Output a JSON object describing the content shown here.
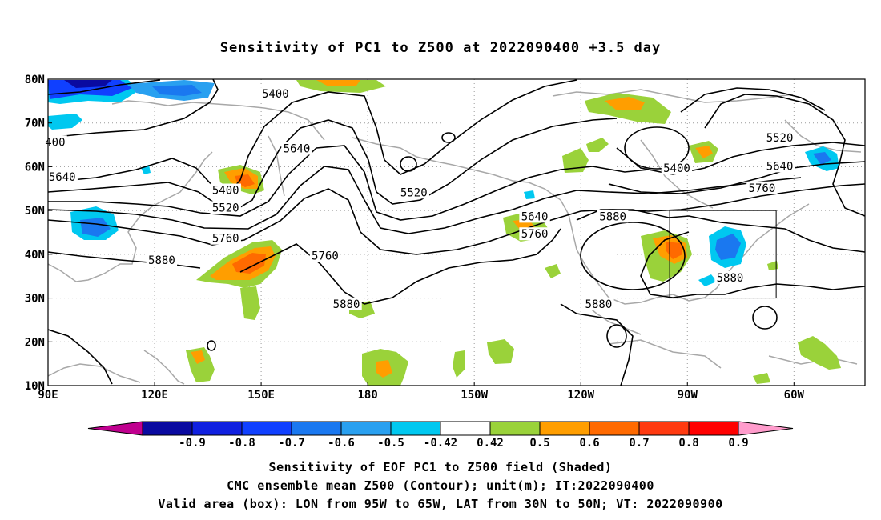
{
  "title": "Sensitivity of PC1 to Z500 at 2022090400 +3.5 day",
  "captions": {
    "line1": "Sensitivity of EOF PC1 to Z500 field (Shaded)",
    "line2": "CMC ensemble mean Z500 (Contour); unit(m); IT:2022090400",
    "line3": "Valid area (box): LON from 95W to 65W, LAT from 30N to 50N; VT: 2022090900"
  },
  "map": {
    "lon_range": [
      90,
      320
    ],
    "lat_range": [
      10,
      80
    ],
    "lon_ticks": [
      {
        "lon": 90,
        "label": "90E"
      },
      {
        "lon": 120,
        "label": "120E"
      },
      {
        "lon": 150,
        "label": "150E"
      },
      {
        "lon": 180,
        "label": "180"
      },
      {
        "lon": 210,
        "label": "150W"
      },
      {
        "lon": 240,
        "label": "120W"
      },
      {
        "lon": 270,
        "label": "90W"
      },
      {
        "lon": 300,
        "label": "60W"
      }
    ],
    "lat_ticks": [
      {
        "lat": 80,
        "label": "80N"
      },
      {
        "lat": 70,
        "label": "70N"
      },
      {
        "lat": 60,
        "label": "60N"
      },
      {
        "lat": 50,
        "label": "50N"
      },
      {
        "lat": 40,
        "label": "40N"
      },
      {
        "lat": 30,
        "label": "30N"
      },
      {
        "lat": 20,
        "label": "20N"
      },
      {
        "lat": 10,
        "label": "10N"
      }
    ],
    "valid_box": {
      "lon_min": 265,
      "lon_max": 295,
      "lat_min": 30,
      "lat_max": 50
    },
    "contour_labels": [
      {
        "text": "5400",
        "lon": 154,
        "lat": 76.5
      },
      {
        "text": "400",
        "lon": 92,
        "lat": 65.5
      },
      {
        "text": "5640",
        "lon": 94,
        "lat": 57.5
      },
      {
        "text": "5640",
        "lon": 160,
        "lat": 64
      },
      {
        "text": "5400",
        "lon": 140,
        "lat": 54.5
      },
      {
        "text": "5520",
        "lon": 140,
        "lat": 50.5
      },
      {
        "text": "5760",
        "lon": 140,
        "lat": 43.5
      },
      {
        "text": "5880",
        "lon": 122,
        "lat": 38.5
      },
      {
        "text": "5520",
        "lon": 193,
        "lat": 54
      },
      {
        "text": "5760",
        "lon": 168,
        "lat": 39.5
      },
      {
        "text": "5880",
        "lon": 174,
        "lat": 28.5
      },
      {
        "text": "5640",
        "lon": 227,
        "lat": 48.5
      },
      {
        "text": "5760",
        "lon": 227,
        "lat": 44.5
      },
      {
        "text": "5880",
        "lon": 249,
        "lat": 48.5
      },
      {
        "text": "5880",
        "lon": 245,
        "lat": 28.5
      },
      {
        "text": "5400",
        "lon": 267,
        "lat": 59.5
      },
      {
        "text": "5520",
        "lon": 296,
        "lat": 66.5
      },
      {
        "text": "5640",
        "lon": 296,
        "lat": 60
      },
      {
        "text": "5760",
        "lon": 291,
        "lat": 55
      },
      {
        "text": "5880",
        "lon": 282,
        "lat": 34.5
      }
    ]
  },
  "colorbar": {
    "labels": [
      "-0.9",
      "-0.8",
      "-0.7",
      "-0.6",
      "-0.5",
      "-0.42",
      "0.42",
      "0.5",
      "0.6",
      "0.7",
      "0.8",
      "0.9"
    ],
    "colors": [
      "#c0008f",
      "#0a0aa0",
      "#1020e0",
      "#1040ff",
      "#1a78f0",
      "#29a0f0",
      "#00c8f0",
      "#ffffff",
      "#9ad23a",
      "#ff9e00",
      "#ff6a00",
      "#ff3a10",
      "#ff0000",
      "#ff9ccc"
    ]
  }
}
